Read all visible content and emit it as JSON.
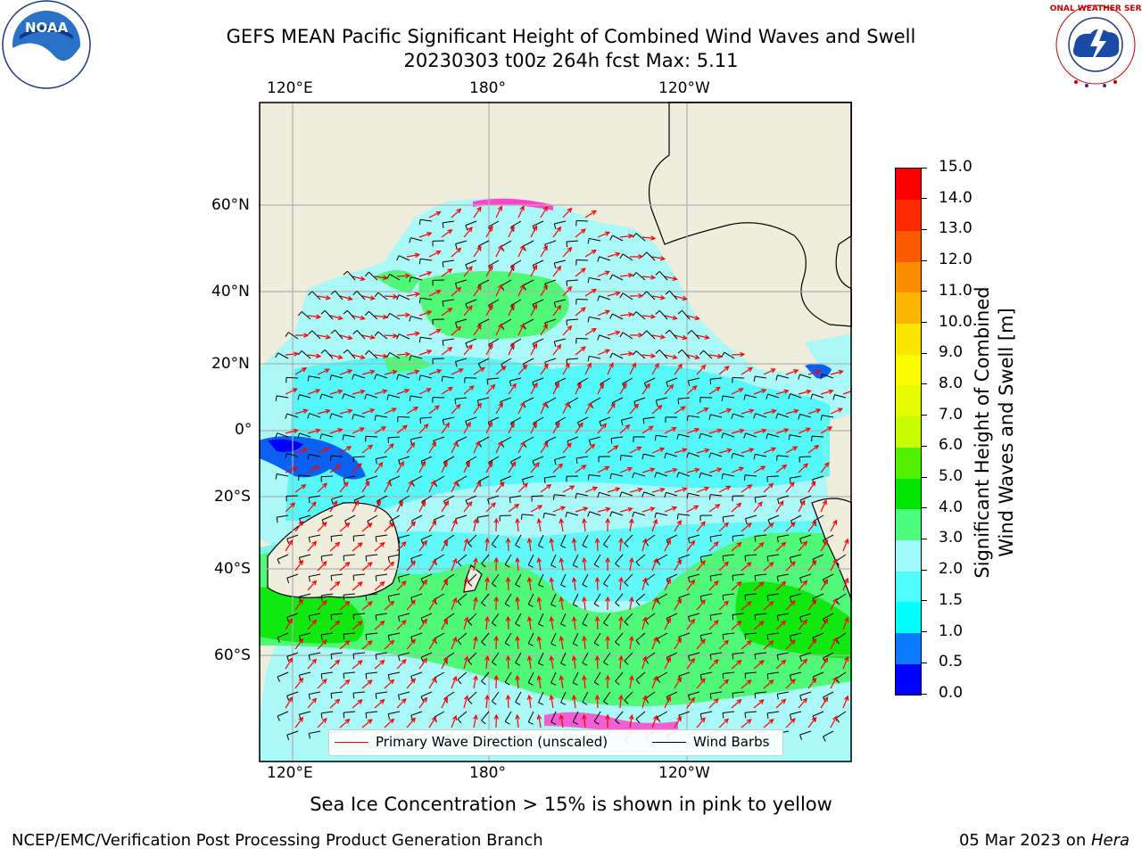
{
  "header": {
    "title": "GEFS MEAN Pacific Significant Height of Combined Wind Waves and Swell",
    "subtitle": "20230303 t00z 264h fcst   Max: 5.11"
  },
  "logos": {
    "noaa": "NOAA",
    "nws": "NATIONAL WEATHER SERVICE"
  },
  "map": {
    "lon_ticks_top": [
      "120°E",
      "180°",
      "120°W"
    ],
    "lon_ticks_bottom": [
      "120°E",
      "180°",
      "120°W"
    ],
    "lat_ticks": [
      "60°N",
      "40°N",
      "20°N",
      "0°",
      "20°S",
      "40°S",
      "60°S"
    ],
    "colors": {
      "land": "#efeddc",
      "ocean_base": "#aaf8f8",
      "wave_15": "#30f8f8",
      "wave_30": "#50f878",
      "wave_40": "#10e810",
      "wave_05": "#0a60f0",
      "wave_00": "#0000f8",
      "sea_ice": "#ff44cc",
      "wave_arrow": "#ff0000",
      "wind_barb": "#000000"
    }
  },
  "legend": {
    "wave_direction": "Primary Wave Direction (unscaled)",
    "wind_barbs": "Wind Barbs"
  },
  "colorbar": {
    "title_line1": "Significant Height of Combined",
    "title_line2": "Wind Waves and Swell [m]",
    "ticks": [
      "0.0",
      "0.5",
      "1.0",
      "1.5",
      "2.0",
      "3.0",
      "4.0",
      "5.0",
      "6.0",
      "7.0",
      "8.0",
      "9.0",
      "10.0",
      "11.0",
      "12.0",
      "13.0",
      "14.0",
      "15.0"
    ],
    "colors": [
      "#0000ff",
      "#0a78ff",
      "#00ffff",
      "#50fcfc",
      "#a0fcfc",
      "#4cfc7c",
      "#00e600",
      "#50f000",
      "#c8fc00",
      "#e6fc00",
      "#fcfc00",
      "#fce600",
      "#fcb400",
      "#fc8c00",
      "#fc5a00",
      "#fc2800",
      "#fc0000"
    ]
  },
  "caption": "Sea Ice Concentration > 15% is shown in pink to yellow",
  "footer": {
    "left": "NCEP/EMC/Verification Post Processing Product Generation Branch",
    "right_date": "05 Mar 2023 on ",
    "right_host": "Hera"
  }
}
